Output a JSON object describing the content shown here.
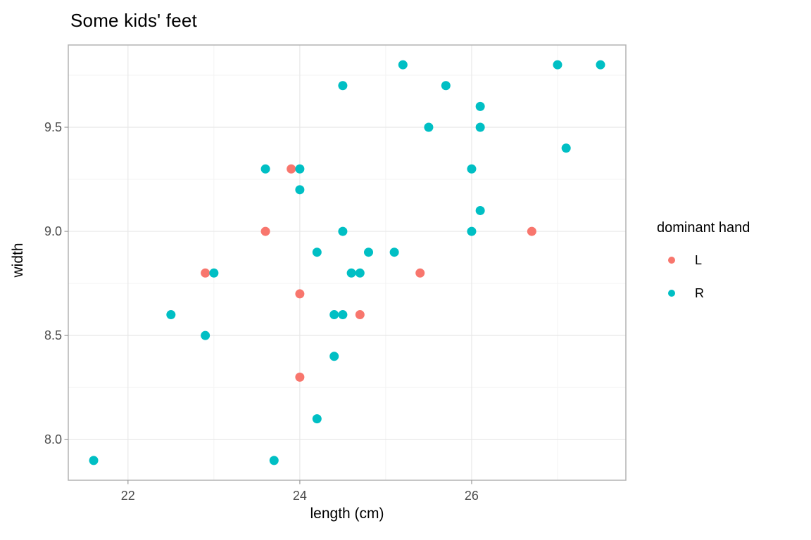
{
  "chart_data": {
    "type": "scatter",
    "title": "Some kids' feet",
    "xlabel": "length (cm)",
    "ylabel": "width",
    "xlim": [
      21.305,
      27.795
    ],
    "ylim": [
      7.805,
      9.895
    ],
    "grid": true,
    "legend_position": "right",
    "x_ticks": [
      {
        "value": 22,
        "label": "22"
      },
      {
        "value": 24,
        "label": "24"
      },
      {
        "value": 26,
        "label": "26"
      }
    ],
    "x_minor_ticks": [
      23,
      25,
      27
    ],
    "y_ticks": [
      {
        "value": 8.0,
        "label": "8.0"
      },
      {
        "value": 8.5,
        "label": "8.5"
      },
      {
        "value": 9.0,
        "label": "9.0"
      },
      {
        "value": 9.5,
        "label": "9.5"
      }
    ],
    "y_minor_ticks": [
      8.25,
      8.75,
      9.25,
      9.75
    ],
    "legend": {
      "title": "dominant hand",
      "items": [
        {
          "label": "L",
          "color": "#F8766D"
        },
        {
          "label": "R",
          "color": "#00BFC4"
        }
      ]
    },
    "series": [
      {
        "name": "L",
        "color": "#F8766D",
        "points": [
          [
            22.9,
            8.8
          ],
          [
            23.6,
            9.0
          ],
          [
            23.9,
            9.3
          ],
          [
            24.0,
            8.3
          ],
          [
            24.0,
            8.7
          ],
          [
            24.7,
            8.6
          ],
          [
            25.4,
            8.8
          ],
          [
            26.7,
            9.0
          ]
        ]
      },
      {
        "name": "R",
        "color": "#00BFC4",
        "points": [
          [
            21.6,
            7.9
          ],
          [
            22.5,
            8.6
          ],
          [
            22.9,
            8.5
          ],
          [
            23.0,
            8.8
          ],
          [
            23.6,
            9.3
          ],
          [
            23.7,
            7.9
          ],
          [
            24.0,
            9.2
          ],
          [
            24.0,
            9.3
          ],
          [
            24.2,
            8.1
          ],
          [
            24.2,
            8.9
          ],
          [
            24.4,
            8.4
          ],
          [
            24.4,
            8.6
          ],
          [
            24.5,
            8.6
          ],
          [
            24.5,
            9.0
          ],
          [
            24.5,
            9.7
          ],
          [
            24.6,
            8.8
          ],
          [
            24.7,
            8.8
          ],
          [
            24.8,
            8.9
          ],
          [
            25.1,
            8.9
          ],
          [
            25.2,
            9.8
          ],
          [
            25.5,
            9.5
          ],
          [
            25.7,
            9.7
          ],
          [
            26.0,
            9.0
          ],
          [
            26.0,
            9.3
          ],
          [
            26.1,
            9.1
          ],
          [
            26.1,
            9.5
          ],
          [
            26.1,
            9.6
          ],
          [
            27.0,
            9.8
          ],
          [
            27.1,
            9.4
          ],
          [
            27.5,
            9.8
          ]
        ]
      }
    ]
  }
}
